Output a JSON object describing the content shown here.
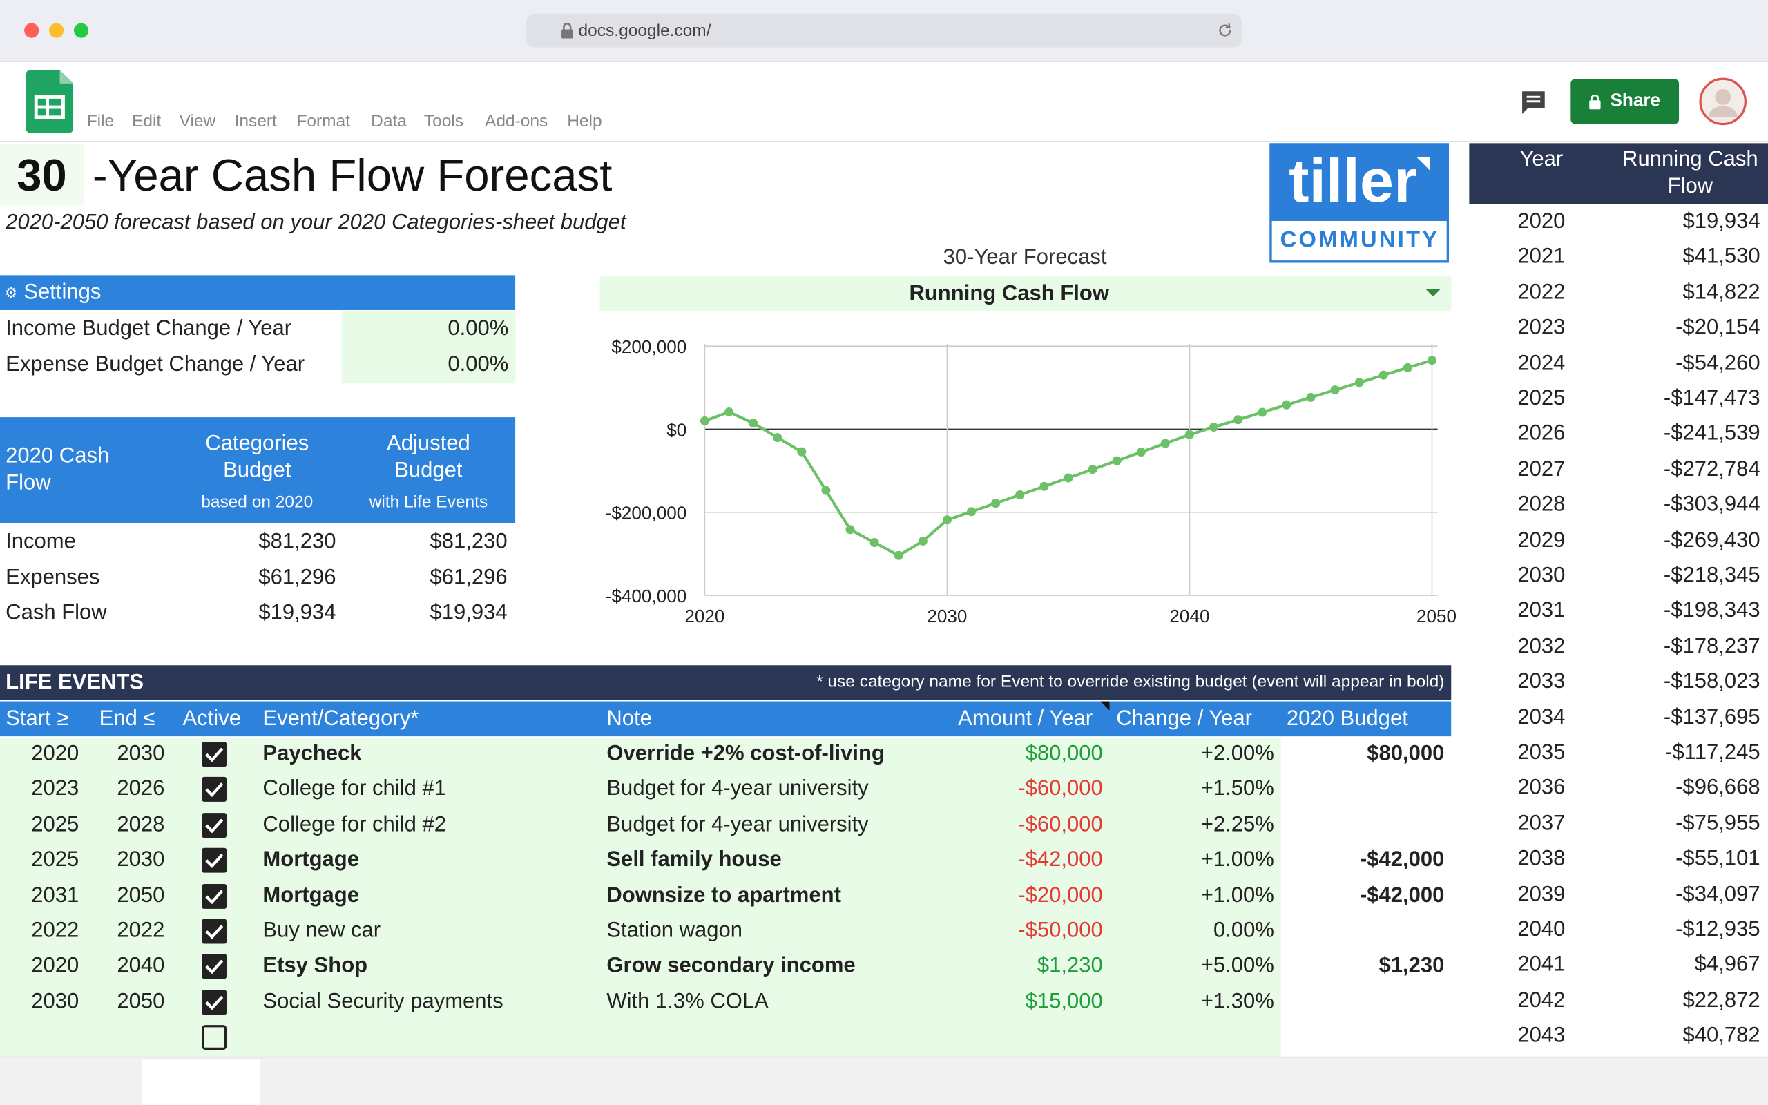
{
  "browser": {
    "url": "docs.google.com/"
  },
  "app": {
    "menu": [
      "File",
      "Edit",
      "View",
      "Insert",
      "Format",
      "Data",
      "Tools",
      "Add-ons",
      "Help"
    ],
    "share": "Share"
  },
  "sheet": {
    "title_number": "30",
    "title": "-Year Cash Flow Forecast",
    "subtitle": "2020-2050 forecast based on your 2020 Categories-sheet budget"
  },
  "logo": {
    "name": "tiller",
    "tagline": "COMMUNITY"
  },
  "settings": {
    "header": "Settings",
    "rows": [
      [
        "Income Budget Change / Year",
        "0.00%"
      ],
      [
        "Expense Budget Change / Year",
        "0.00%"
      ]
    ]
  },
  "cashflow": {
    "header": {
      "label": "2020 Cash Flow",
      "col1": "Categories Budget",
      "col1_sub": "based on 2020",
      "col2": "Adjusted Budget",
      "col2_sub": "with Life Events"
    },
    "rows": [
      [
        "Income",
        "$81,230",
        "$81,230"
      ],
      [
        "Expenses",
        "$61,296",
        "$61,296"
      ],
      [
        "Cash Flow",
        "$19,934",
        "$19,934"
      ]
    ]
  },
  "chart_data": {
    "type": "line",
    "title": "30-Year Forecast",
    "selector": "Running Cash Flow",
    "x": [
      2020,
      2021,
      2022,
      2023,
      2024,
      2025,
      2026,
      2027,
      2028,
      2029,
      2030,
      2031,
      2032,
      2033,
      2034,
      2035,
      2036,
      2037,
      2038,
      2039,
      2040,
      2041,
      2042,
      2043,
      2044,
      2045,
      2046,
      2047,
      2048,
      2049,
      2050
    ],
    "values": [
      19934,
      41530,
      14822,
      -20154,
      -54260,
      -147473,
      -241539,
      -272784,
      -303944,
      -269430,
      -218345,
      -198343,
      -178237,
      -158023,
      -137695,
      -117245,
      -96668,
      -75955,
      -55101,
      -34097,
      -12935,
      4967,
      22872,
      40782,
      58700,
      76600,
      94500,
      112400,
      130300,
      148200,
      166000
    ],
    "color": "#6cc167",
    "xlim": [
      2020,
      2050
    ],
    "ylim": [
      -400000,
      200000
    ],
    "xticks": [
      2020,
      2030,
      2040,
      2050
    ],
    "yticks": [
      {
        "value": 200000,
        "label": "$200,000"
      },
      {
        "value": 0,
        "label": "$0"
      },
      {
        "value": -200000,
        "label": "-$200,000"
      },
      {
        "value": -400000,
        "label": "-$400,000"
      }
    ],
    "grid": true
  },
  "life_events": {
    "title": "LIFE EVENTS",
    "note": "* use category name for Event to override existing budget (event will appear in bold)",
    "columns": [
      "Start ≥",
      "End ≤",
      "Active",
      "Event/Category*",
      "Note",
      "Amount / Year",
      "Change / Year",
      "2020 Budget"
    ],
    "rows": [
      {
        "start": 2020,
        "end": 2030,
        "active": true,
        "event": "Paycheck",
        "note": "Override +2% cost-of-living",
        "amount": "$80,000",
        "change": "+2.00%",
        "budget": "$80,000",
        "bold": true
      },
      {
        "start": 2023,
        "end": 2026,
        "active": true,
        "event": "College for child #1",
        "note": "Budget for 4-year university",
        "amount": "-$60,000",
        "change": "+1.50%",
        "bold": false
      },
      {
        "start": 2025,
        "end": 2028,
        "active": true,
        "event": "College for child #2",
        "note": "Budget for 4-year university",
        "amount": "-$60,000",
        "change": "+2.25%",
        "bold": false
      },
      {
        "start": 2025,
        "end": 2030,
        "active": true,
        "event": "Mortgage",
        "note": "Sell family house",
        "amount": "-$42,000",
        "change": "+1.00%",
        "budget": "-$42,000",
        "bold": true
      },
      {
        "start": 2031,
        "end": 2050,
        "active": true,
        "event": "Mortgage",
        "note": "Downsize to apartment",
        "amount": "-$20,000",
        "change": "+1.00%",
        "budget": "-$42,000",
        "bold": true
      },
      {
        "start": 2022,
        "end": 2022,
        "active": true,
        "event": "Buy new car",
        "note": "Station wagon",
        "amount": "-$50,000",
        "change": "0.00%",
        "bold": false
      },
      {
        "start": 2020,
        "end": 2040,
        "active": true,
        "event": "Etsy Shop",
        "note": "Grow secondary income",
        "amount": "$1,230",
        "change": "+5.00%",
        "budget": "$1,230",
        "bold": true
      },
      {
        "start": 2030,
        "end": 2050,
        "active": true,
        "event": "Social Security payments",
        "note": "With 1.3% COLA",
        "amount": "$15,000",
        "change": "+1.30%",
        "bold": false
      },
      {
        "active": false
      }
    ]
  },
  "running": {
    "columns": [
      "Year",
      "Running Cash Flow"
    ],
    "rows": [
      [
        2020,
        "$19,934"
      ],
      [
        2021,
        "$41,530"
      ],
      [
        2022,
        "$14,822"
      ],
      [
        2023,
        "-$20,154"
      ],
      [
        2024,
        "-$54,260"
      ],
      [
        2025,
        "-$147,473"
      ],
      [
        2026,
        "-$241,539"
      ],
      [
        2027,
        "-$272,784"
      ],
      [
        2028,
        "-$303,944"
      ],
      [
        2029,
        "-$269,430"
      ],
      [
        2030,
        "-$218,345"
      ],
      [
        2031,
        "-$198,343"
      ],
      [
        2032,
        "-$178,237"
      ],
      [
        2033,
        "-$158,023"
      ],
      [
        2034,
        "-$137,695"
      ],
      [
        2035,
        "-$117,245"
      ],
      [
        2036,
        "-$96,668"
      ],
      [
        2037,
        "-$75,955"
      ],
      [
        2038,
        "-$55,101"
      ],
      [
        2039,
        "-$34,097"
      ],
      [
        2040,
        "-$12,935"
      ],
      [
        2041,
        "$4,967"
      ],
      [
        2042,
        "$22,872"
      ],
      [
        2043,
        "$40,782"
      ]
    ]
  }
}
